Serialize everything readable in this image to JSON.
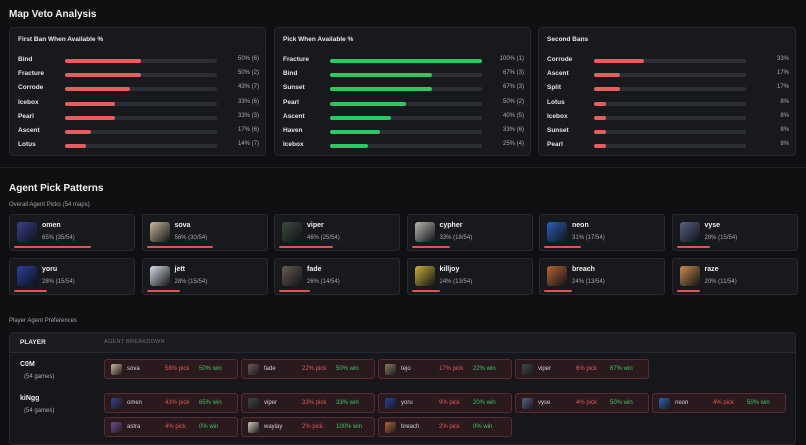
{
  "veto": {
    "title": "Map Veto Analysis",
    "panels": [
      {
        "title": "First Ban When Available %",
        "color": "#e85d5d",
        "rows": [
          {
            "map": "Bind",
            "pct": 50,
            "label": "50% (6)"
          },
          {
            "map": "Fracture",
            "pct": 50,
            "label": "50% (2)"
          },
          {
            "map": "Corrode",
            "pct": 43,
            "label": "43% (7)"
          },
          {
            "map": "Icebox",
            "pct": 33,
            "label": "33% (6)"
          },
          {
            "map": "Pearl",
            "pct": 33,
            "label": "33% (3)"
          },
          {
            "map": "Ascent",
            "pct": 17,
            "label": "17% (6)"
          },
          {
            "map": "Lotus",
            "pct": 14,
            "label": "14% (7)"
          }
        ]
      },
      {
        "title": "Pick When Available %",
        "color": "#2ec863",
        "rows": [
          {
            "map": "Fracture",
            "pct": 100,
            "label": "100% (1)"
          },
          {
            "map": "Bind",
            "pct": 67,
            "label": "67% (3)"
          },
          {
            "map": "Sunset",
            "pct": 67,
            "label": "67% (3)"
          },
          {
            "map": "Pearl",
            "pct": 50,
            "label": "50% (2)"
          },
          {
            "map": "Ascent",
            "pct": 40,
            "label": "40% (5)"
          },
          {
            "map": "Haven",
            "pct": 33,
            "label": "33% (6)"
          },
          {
            "map": "Icebox",
            "pct": 25,
            "label": "25% (4)"
          }
        ]
      },
      {
        "title": "Second Bans",
        "color": "#e85d5d",
        "rows": [
          {
            "map": "Corrode",
            "pct": 33,
            "label": "33%"
          },
          {
            "map": "Ascent",
            "pct": 17,
            "label": "17%"
          },
          {
            "map": "Split",
            "pct": 17,
            "label": "17%"
          },
          {
            "map": "Lotus",
            "pct": 8,
            "label": "8%"
          },
          {
            "map": "Icebox",
            "pct": 8,
            "label": "8%"
          },
          {
            "map": "Sunset",
            "pct": 8,
            "label": "8%"
          },
          {
            "map": "Pearl",
            "pct": 8,
            "label": "8%"
          }
        ]
      }
    ]
  },
  "agents": {
    "title": "Agent Pick Patterns",
    "overall_label": "Overall Agent Picks (54 maps)",
    "cards": [
      {
        "name": "omen",
        "stat": "65% (35/54)",
        "pct": 65,
        "icon": "omen-portrait-icon",
        "color": "#3a3f8c"
      },
      {
        "name": "sova",
        "stat": "56% (30/54)",
        "pct": 56,
        "icon": "sova-portrait-icon",
        "color": "#c9b79a"
      },
      {
        "name": "viper",
        "stat": "46% (25/54)",
        "pct": 46,
        "icon": "viper-portrait-icon",
        "color": "#3c4a3e"
      },
      {
        "name": "cypher",
        "stat": "33% (18/54)",
        "pct": 33,
        "icon": "cypher-portrait-icon",
        "color": "#b8b6ad"
      },
      {
        "name": "neon",
        "stat": "31% (17/54)",
        "pct": 31,
        "icon": "neon-portrait-icon",
        "color": "#2e5fb8"
      },
      {
        "name": "vyse",
        "stat": "28% (15/54)",
        "pct": 28,
        "icon": "vyse-portrait-icon",
        "color": "#5a5f86"
      },
      {
        "name": "yoru",
        "stat": "28% (15/54)",
        "pct": 28,
        "icon": "yoru-portrait-icon",
        "color": "#2a3fa0"
      },
      {
        "name": "jett",
        "stat": "28% (15/54)",
        "pct": 28,
        "icon": "jett-portrait-icon",
        "color": "#d7dbe6"
      },
      {
        "name": "fade",
        "stat": "26% (14/54)",
        "pct": 26,
        "icon": "fade-portrait-icon",
        "color": "#6b5a52"
      },
      {
        "name": "killjoy",
        "stat": "24% (13/54)",
        "pct": 24,
        "icon": "killjoy-portrait-icon",
        "color": "#c8b03a"
      },
      {
        "name": "breach",
        "stat": "24% (13/54)",
        "pct": 24,
        "icon": "breach-portrait-icon",
        "color": "#b5643a"
      },
      {
        "name": "raze",
        "stat": "20% (11/54)",
        "pct": 20,
        "icon": "raze-portrait-icon",
        "color": "#c98a4a"
      }
    ]
  },
  "preferences": {
    "title": "Player Agent Preferences",
    "col_player": "PLAYER",
    "col_breakdown": "AGENT BREAKDOWN",
    "players": [
      {
        "name": "C0M",
        "games": "(54 games)",
        "chips": [
          {
            "agent": "sova",
            "pick": "58% pick",
            "win": "50% win",
            "icon": "sova-portrait-icon",
            "color": "#c9b79a"
          },
          {
            "agent": "fade",
            "pick": "22% pick",
            "win": "50% win",
            "icon": "fade-portrait-icon",
            "color": "#6b5a52"
          },
          {
            "agent": "tejo",
            "pick": "17% pick",
            "win": "22% win",
            "icon": "tejo-portrait-icon",
            "color": "#8a7a5a"
          },
          {
            "agent": "viper",
            "pick": "6% pick",
            "win": "67% win",
            "icon": "viper-portrait-icon",
            "color": "#3c4a3e"
          }
        ]
      },
      {
        "name": "kiNgg",
        "games": "(54 games)",
        "chips": [
          {
            "agent": "omen",
            "pick": "43% pick",
            "win": "65% win",
            "icon": "omen-portrait-icon",
            "color": "#3a3f8c"
          },
          {
            "agent": "viper",
            "pick": "33% pick",
            "win": "33% win",
            "icon": "viper-portrait-icon",
            "color": "#3c4a3e"
          },
          {
            "agent": "yoru",
            "pick": "9% pick",
            "win": "20% win",
            "icon": "yoru-portrait-icon",
            "color": "#2a3fa0"
          },
          {
            "agent": "vyse",
            "pick": "4% pick",
            "win": "50% win",
            "icon": "vyse-portrait-icon",
            "color": "#5a5f86"
          },
          {
            "agent": "neon",
            "pick": "4% pick",
            "win": "50% win",
            "icon": "neon-portrait-icon",
            "color": "#2e5fb8"
          },
          {
            "agent": "astra",
            "pick": "4% pick",
            "win": "0% win",
            "icon": "astra-portrait-icon",
            "color": "#7a4a8a"
          },
          {
            "agent": "waylay",
            "pick": "2% pick",
            "win": "100% win",
            "icon": "waylay-portrait-icon",
            "color": "#d0c8b8"
          },
          {
            "agent": "breach",
            "pick": "2% pick",
            "win": "0% win",
            "icon": "breach-portrait-icon",
            "color": "#b5643a"
          }
        ]
      }
    ]
  }
}
